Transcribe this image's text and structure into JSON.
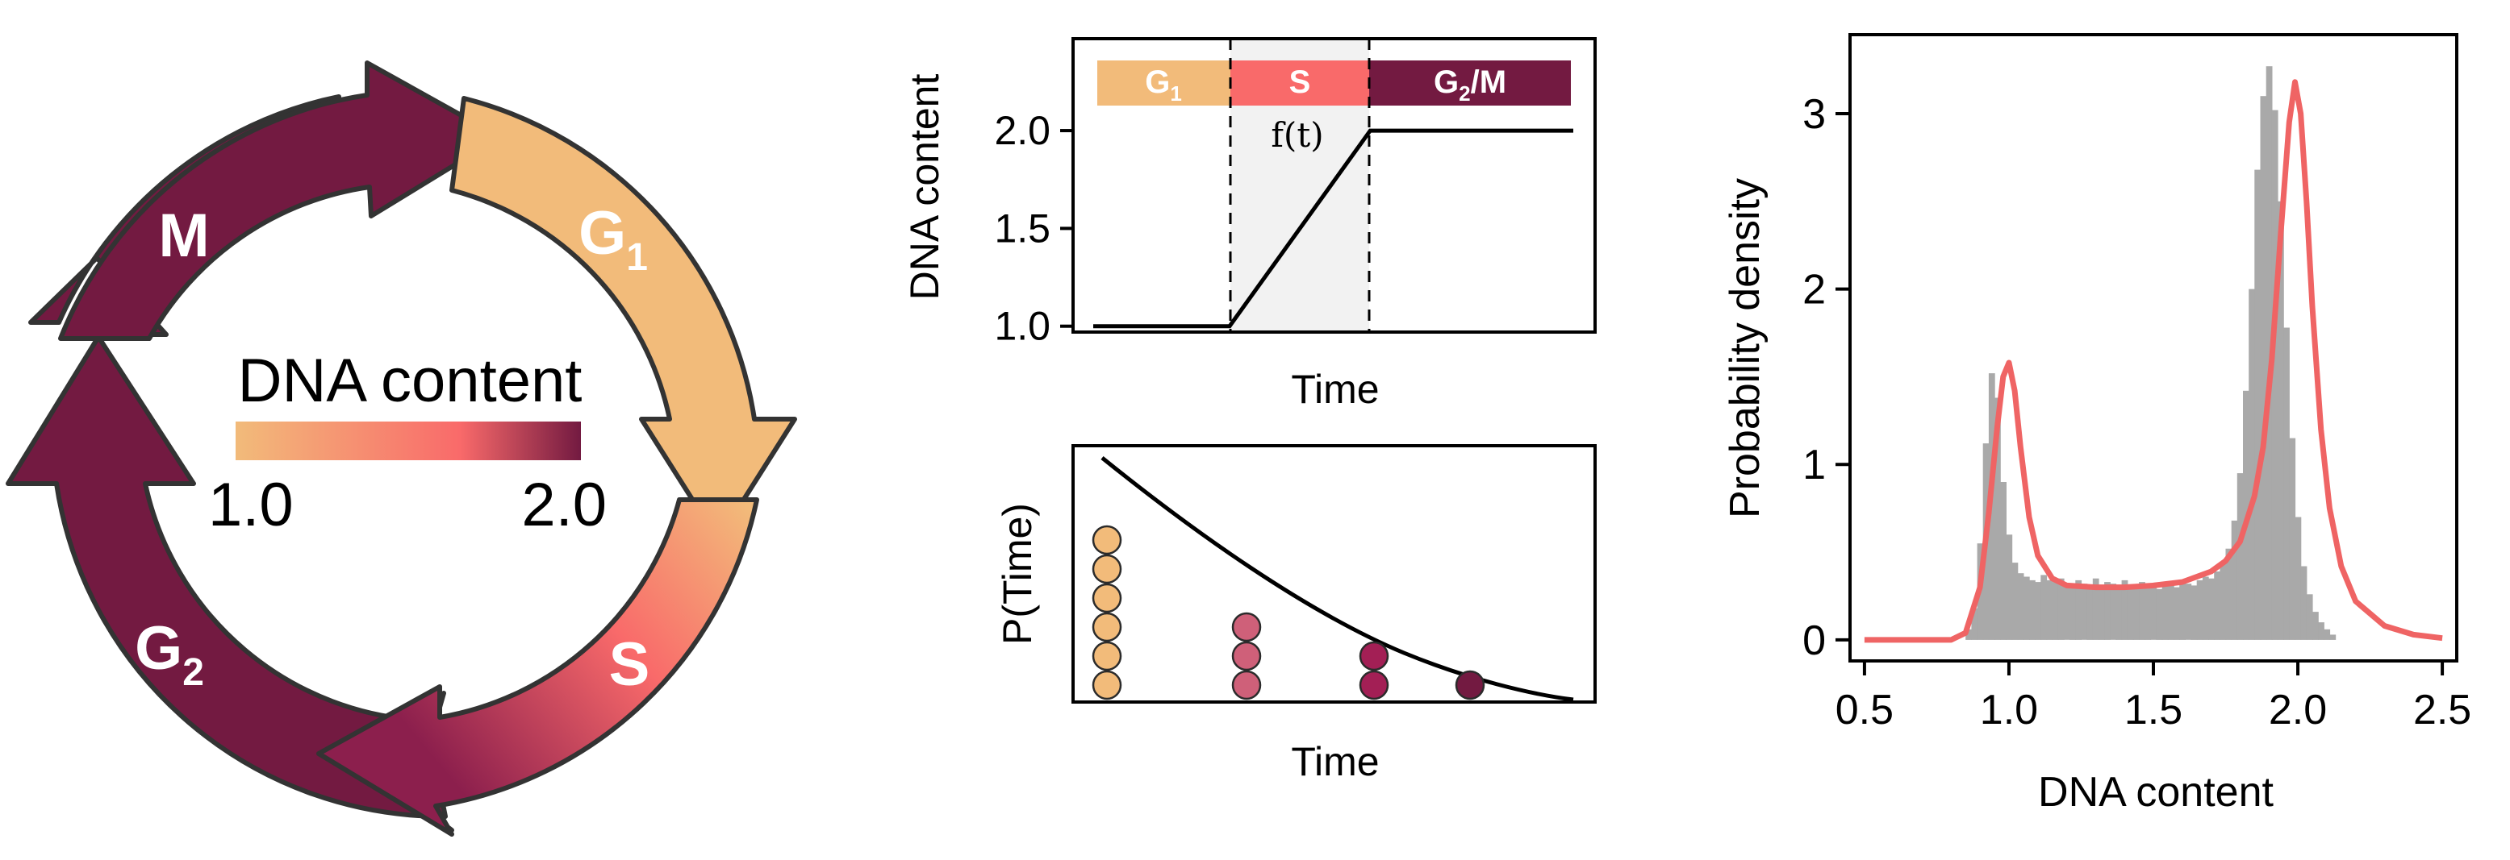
{
  "colors": {
    "g1": "#f2bb7a",
    "s": "#f96a6a",
    "g2m": "#731a41",
    "mid": "#be3f6a",
    "outline": "#333333",
    "fit": "#ef6464",
    "hist": "#a9a9a9"
  },
  "cycle": {
    "labels": {
      "m": "M",
      "g1": "G",
      "g1_sub": "1",
      "s": "S",
      "g2": "G",
      "g2_sub": "2"
    },
    "colorbar": {
      "title": "DNA content",
      "min_label": "1.0",
      "max_label": "2.0"
    }
  },
  "phase_plot": {
    "ylabel": "DNA content",
    "xlabel": "Time",
    "yticks": [
      "1.0",
      "1.5",
      "2.0"
    ],
    "ylim": [
      0.97,
      2.47
    ],
    "phases": [
      {
        "main": "G",
        "sub": "1",
        "suffix": ""
      },
      {
        "main": "S",
        "sub": "",
        "suffix": ""
      },
      {
        "main": "G",
        "sub": "2",
        "suffix": "/M"
      }
    ],
    "curve_label": "f(t)",
    "curve": [
      [
        0,
        1.0
      ],
      [
        0.284,
        1.0
      ],
      [
        0.577,
        2.0
      ],
      [
        1,
        2.0
      ]
    ]
  },
  "decay_plot": {
    "ylabel": "P(Time)",
    "xlabel": "Time",
    "columns": [
      6,
      3,
      2,
      1
    ]
  },
  "chart_data": {
    "type": "bar",
    "title": "",
    "xlabel": "DNA content",
    "ylabel": "Probability density",
    "xlim": [
      0.45,
      2.55
    ],
    "ylim": [
      -0.12,
      3.45
    ],
    "xticks": [
      "0.5",
      "1.0",
      "1.5",
      "2.0",
      "2.5"
    ],
    "yticks": [
      "0",
      "1",
      "2",
      "3"
    ],
    "histogram": {
      "bin_edges_start": 0.85,
      "bin_width": 0.02,
      "values": [
        0.06,
        0.18,
        0.55,
        1.12,
        1.52,
        1.38,
        0.9,
        0.6,
        0.44,
        0.38,
        0.36,
        0.34,
        0.33,
        0.37,
        0.34,
        0.33,
        0.35,
        0.32,
        0.31,
        0.34,
        0.32,
        0.3,
        0.35,
        0.31,
        0.33,
        0.32,
        0.3,
        0.34,
        0.31,
        0.29,
        0.33,
        0.3,
        0.32,
        0.29,
        0.33,
        0.31,
        0.3,
        0.34,
        0.32,
        0.31,
        0.34,
        0.36,
        0.35,
        0.39,
        0.44,
        0.52,
        0.68,
        0.95,
        1.42,
        2.0,
        2.68,
        3.1,
        3.27,
        3.02,
        2.5,
        1.78,
        1.15,
        0.7,
        0.42,
        0.26,
        0.16,
        0.1,
        0.06,
        0.03
      ]
    },
    "fit": {
      "x": [
        0.5,
        0.8,
        0.85,
        0.9,
        0.93,
        0.96,
        0.98,
        1.0,
        1.02,
        1.04,
        1.07,
        1.1,
        1.15,
        1.2,
        1.3,
        1.4,
        1.5,
        1.6,
        1.7,
        1.75,
        1.8,
        1.85,
        1.88,
        1.91,
        1.94,
        1.97,
        1.99,
        2.01,
        2.03,
        2.05,
        2.08,
        2.11,
        2.15,
        2.2,
        2.3,
        2.4,
        2.5
      ],
      "y": [
        0.0,
        0.0,
        0.04,
        0.3,
        0.72,
        1.22,
        1.5,
        1.58,
        1.42,
        1.1,
        0.7,
        0.48,
        0.35,
        0.31,
        0.3,
        0.3,
        0.31,
        0.33,
        0.39,
        0.45,
        0.56,
        0.82,
        1.1,
        1.6,
        2.3,
        2.95,
        3.18,
        3.0,
        2.5,
        1.9,
        1.2,
        0.75,
        0.42,
        0.22,
        0.08,
        0.03,
        0.01
      ]
    }
  }
}
